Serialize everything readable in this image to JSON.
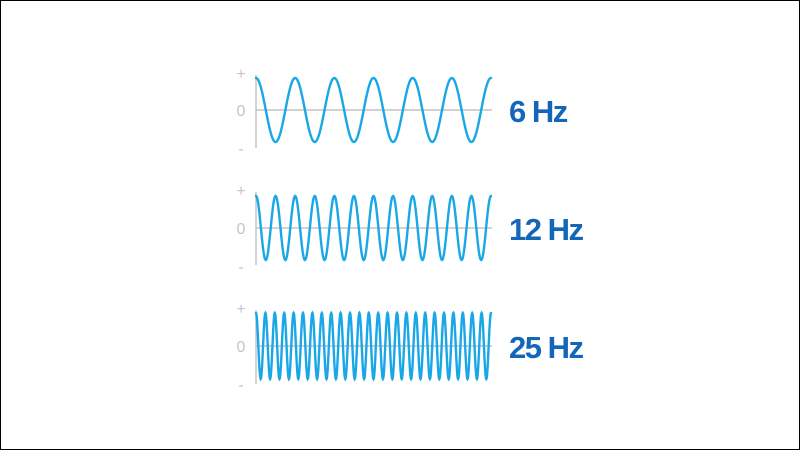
{
  "colors": {
    "wave": "#1aa7e6",
    "label": "#1466b8",
    "axis": "#c4c4c4",
    "background": "#ffffff"
  },
  "axis_labels": {
    "plus": "+",
    "zero": "0",
    "minus": "-"
  },
  "waves": [
    {
      "frequency_hz": 6,
      "cycles_shown": 6,
      "label": "6 Hz"
    },
    {
      "frequency_hz": 12,
      "cycles_shown": 12,
      "label": "12 Hz"
    },
    {
      "frequency_hz": 25,
      "cycles_shown": 25,
      "label": "25 Hz"
    }
  ]
}
